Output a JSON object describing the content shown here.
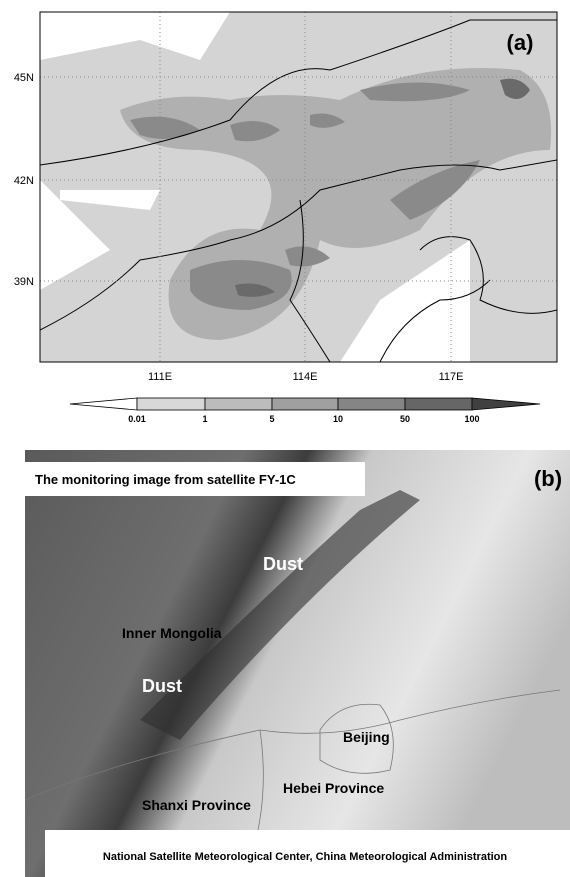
{
  "panel_a": {
    "label": "(a)",
    "lat_labels": [
      "45N",
      "42N",
      "39N"
    ],
    "lon_labels": [
      "111E",
      "114E",
      "117E"
    ],
    "colorbar_labels": [
      "0.01",
      "1",
      "5",
      "10",
      "50",
      "100"
    ]
  },
  "panel_b": {
    "label": "(b)",
    "title": "The monitoring image from satellite FY-1C",
    "annotations": [
      "Dust",
      "Inner Mongolia",
      "Dust",
      "Beijing",
      "Hebei Province",
      "Shanxi Province"
    ],
    "credit": "National Satellite Meteorological Center, China Meteorological Administration"
  }
}
